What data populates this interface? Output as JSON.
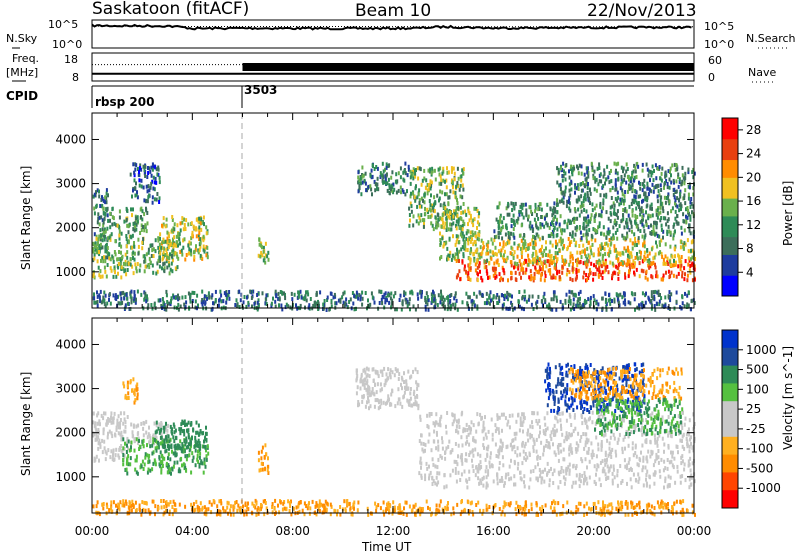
{
  "header": {
    "title": "Saskatoon (fitACF)",
    "beam": "Beam 10",
    "date": "22/Nov/2013"
  },
  "sky_panel": {
    "left_label": "N.Sky",
    "left_ticks": [
      "10^5",
      "10^0"
    ],
    "right_ticks": [
      "10^5",
      "10^0"
    ],
    "right_label": "N.Search"
  },
  "freq_panel": {
    "left_label_line1": "Freq.",
    "left_label_line2": "[MHz]",
    "left_ticks": [
      "18",
      "8"
    ],
    "right_ticks": [
      "60",
      "0"
    ],
    "right_label": "Nave"
  },
  "cpid": {
    "label": "CPID",
    "segments": [
      {
        "start_hour": 0,
        "name": "rbsp 200"
      },
      {
        "start_hour": 6,
        "name": "3503"
      }
    ]
  },
  "time_axis": {
    "label": "Time UT",
    "ticks": [
      "00:00",
      "04:00",
      "08:00",
      "12:00",
      "16:00",
      "20:00",
      "00:00"
    ],
    "range_hours": [
      0,
      24
    ]
  },
  "colors": {
    "power": [
      "#0000ff",
      "#1e3c9e",
      "#3c6e5a",
      "#2e8b57",
      "#6ab04c",
      "#f0c020",
      "#ff8c00",
      "#e84010",
      "#ff0000"
    ],
    "velocity": [
      "#ff0000",
      "#ff4500",
      "#ff8c00",
      "#ffb020",
      "#c8c8c8",
      "#c8c8c8",
      "#55c040",
      "#2e8b57",
      "#1e4a9c",
      "#0033cc"
    ]
  },
  "chart_data": [
    {
      "type": "line",
      "name": "sky-noise",
      "x_label": "",
      "y_label": "N.Sky",
      "y_scale": "log",
      "ylim": [
        1,
        100000
      ],
      "series": [
        {
          "name": "N.Sky",
          "style": "solid",
          "x": [
            0,
            1,
            2,
            3,
            4,
            5,
            6,
            8,
            10,
            12,
            13,
            14,
            15,
            16,
            18,
            20,
            22,
            24
          ],
          "y": [
            10000,
            9000,
            9000,
            8500,
            3000,
            3200,
            3500,
            3200,
            3000,
            3200,
            3500,
            6000,
            5000,
            3500,
            4000,
            4500,
            5000,
            4800
          ]
        },
        {
          "name": "N.Search",
          "style": "dotted",
          "x": [
            0,
            2,
            4,
            6,
            8,
            10,
            12,
            14,
            16,
            18,
            20,
            22,
            24
          ],
          "y": [
            8000,
            8000,
            7000,
            7000,
            7000,
            6800,
            6500,
            6000,
            6000,
            6000,
            6000,
            6000,
            6000
          ]
        }
      ]
    },
    {
      "type": "line",
      "name": "frequency-nave",
      "y_label": "Freq. [MHz]",
      "ylim": [
        8,
        18
      ],
      "y2_label": "Nave",
      "y2lim": [
        0,
        60
      ],
      "series": [
        {
          "name": "Freq",
          "style": "solid",
          "x": [
            0,
            24
          ],
          "y": [
            10.6,
            10.6
          ]
        },
        {
          "name": "Nave",
          "style": "dotted",
          "x": [
            0,
            6
          ],
          "y": [
            35,
            35
          ]
        },
        {
          "name": "Nave",
          "style": "dense",
          "x": [
            6,
            24
          ],
          "y": [
            30,
            30
          ]
        }
      ]
    },
    {
      "type": "heatmap",
      "name": "power",
      "x_label": "Time UT",
      "y_label": "Slant Range [km]",
      "y_ticks": [
        1000,
        2000,
        3000,
        4000
      ],
      "ylim": [
        180,
        4600
      ],
      "xlim_hours": [
        0,
        24
      ],
      "colorbar": {
        "label": "Power [dB]",
        "ticks": [
          4,
          8,
          12,
          16,
          20,
          24,
          28
        ],
        "range": [
          0,
          30
        ]
      },
      "regions": [
        {
          "t": [
            0.0,
            0.6
          ],
          "r": [
            1300,
            2900
          ],
          "level": 0.3
        },
        {
          "t": [
            0.0,
            1.6
          ],
          "r": [
            900,
            1900
          ],
          "level": 0.5
        },
        {
          "t": [
            0.4,
            2.2
          ],
          "r": [
            1900,
            2500
          ],
          "level": 0.4
        },
        {
          "t": [
            1.6,
            3.4
          ],
          "r": [
            1000,
            1800
          ],
          "level": 0.45
        },
        {
          "t": [
            2.6,
            4.6
          ],
          "r": [
            1300,
            2300
          ],
          "level": 0.55
        },
        {
          "t": [
            1.5,
            2.7
          ],
          "r": [
            2600,
            3500
          ],
          "level": 0.2
        },
        {
          "t": [
            6.6,
            7.0
          ],
          "r": [
            1100,
            1800
          ],
          "level": 0.5
        },
        {
          "t": [
            10.5,
            12.6
          ],
          "r": [
            2800,
            3500
          ],
          "level": 0.3
        },
        {
          "t": [
            12.6,
            14.8
          ],
          "r": [
            2000,
            3400
          ],
          "level": 0.45
        },
        {
          "t": [
            13.8,
            15.5
          ],
          "r": [
            1300,
            2500
          ],
          "level": 0.5
        },
        {
          "t": [
            14.5,
            24.0
          ],
          "r": [
            850,
            1300
          ],
          "level": 0.85
        },
        {
          "t": [
            15.0,
            24.0
          ],
          "r": [
            1200,
            1800
          ],
          "level": 0.6
        },
        {
          "t": [
            16.0,
            24.0
          ],
          "r": [
            1800,
            2600
          ],
          "level": 0.35
        },
        {
          "t": [
            18.5,
            24.0
          ],
          "r": [
            2600,
            3500
          ],
          "level": 0.3
        },
        {
          "t": [
            0.0,
            24.0
          ],
          "r": [
            180,
            600
          ],
          "level": 0.25
        }
      ]
    },
    {
      "type": "heatmap",
      "name": "velocity",
      "x_label": "Time UT",
      "y_label": "Slant Range [km]",
      "y_ticks": [
        1000,
        2000,
        3000,
        4000
      ],
      "ylim": [
        180,
        4600
      ],
      "xlim_hours": [
        0,
        24
      ],
      "colorbar": {
        "label": "Velocity [m s^-1]",
        "ticks": [
          1000,
          500,
          100,
          25,
          -25,
          -100,
          -500,
          -1000
        ]
      },
      "regions": [
        {
          "t": [
            0.0,
            1.4
          ],
          "r": [
            1400,
            2500
          ],
          "class": "grey"
        },
        {
          "t": [
            1.2,
            1.8
          ],
          "r": [
            2700,
            3300
          ],
          "class": "orange"
        },
        {
          "t": [
            1.5,
            3.0
          ],
          "r": [
            1800,
            2300
          ],
          "class": "grey"
        },
        {
          "t": [
            1.2,
            4.6
          ],
          "r": [
            1100,
            1900
          ],
          "class": "green"
        },
        {
          "t": [
            2.4,
            4.6
          ],
          "r": [
            1700,
            2300
          ],
          "class": "teal"
        },
        {
          "t": [
            0.0,
            24.0
          ],
          "r": [
            180,
            500
          ],
          "class": "orange"
        },
        {
          "t": [
            6.6,
            7.0
          ],
          "r": [
            1100,
            1800
          ],
          "class": "orange"
        },
        {
          "t": [
            10.5,
            13.0
          ],
          "r": [
            2600,
            3500
          ],
          "class": "grey"
        },
        {
          "t": [
            13.0,
            24.0
          ],
          "r": [
            800,
            2500
          ],
          "class": "grey"
        },
        {
          "t": [
            18.0,
            22.0
          ],
          "r": [
            2500,
            3600
          ],
          "class": "blue"
        },
        {
          "t": [
            19.0,
            23.5
          ],
          "r": [
            2800,
            3500
          ],
          "class": "orange"
        },
        {
          "t": [
            20.0,
            23.5
          ],
          "r": [
            2000,
            2800
          ],
          "class": "green"
        }
      ]
    }
  ]
}
